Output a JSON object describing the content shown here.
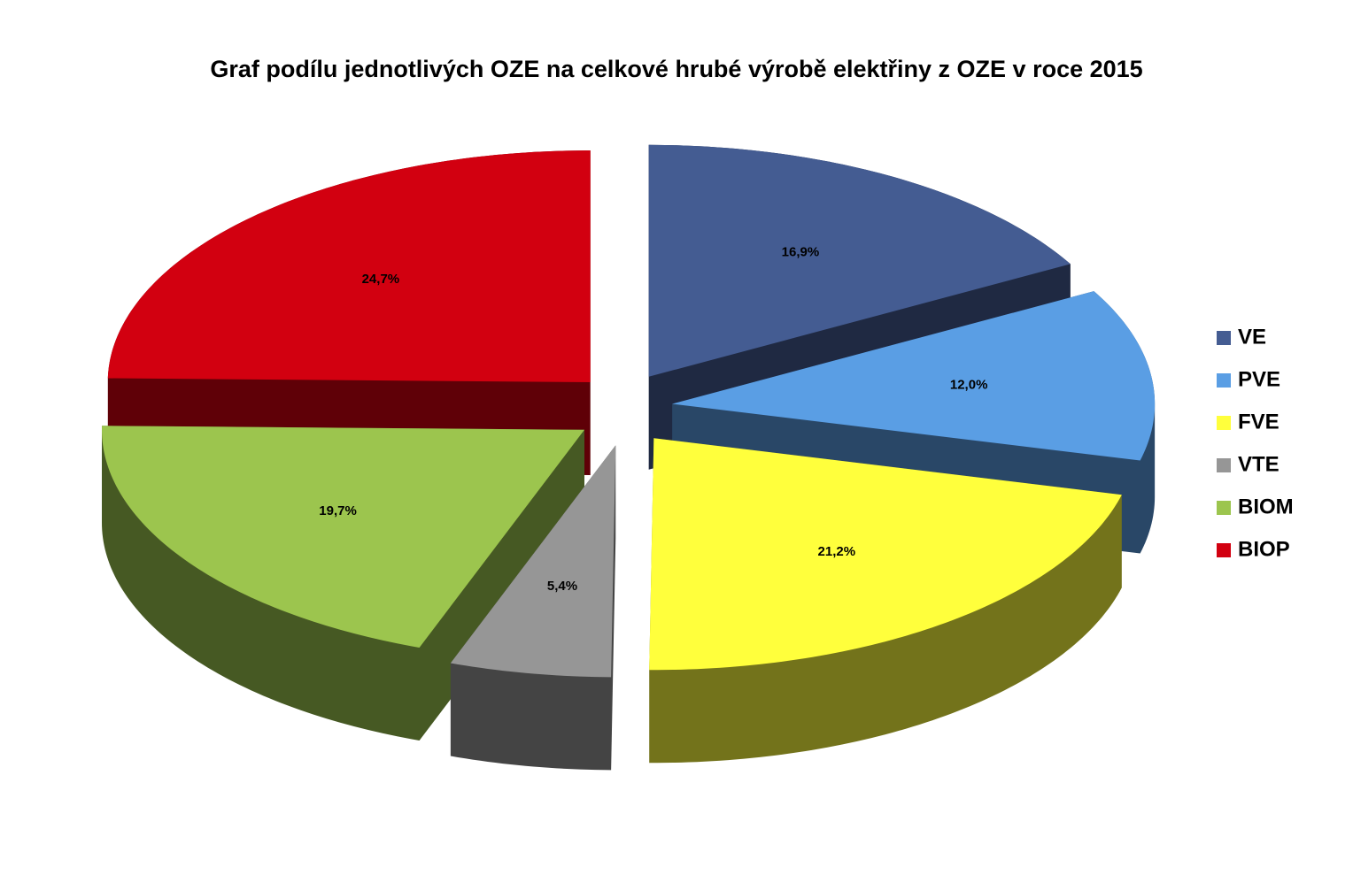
{
  "chart_data": {
    "type": "pie",
    "title": "Graf podílu jednotlivých OZE na celkové hrubé výrobě elektřiny z OZE v roce 2015",
    "categories": [
      "VE",
      "PVE",
      "FVE",
      "VTE",
      "BIOM",
      "BIOP"
    ],
    "values": [
      16.9,
      12.0,
      21.2,
      5.4,
      19.7,
      24.7
    ],
    "value_labels": [
      "16,9%",
      "12,0%",
      "21,2%",
      "5,4%",
      "19,7%",
      "24,7%"
    ],
    "colors": [
      "#445c92",
      "#5a9ee4",
      "#ffff3c",
      "#969696",
      "#9cc54e",
      "#d20010"
    ],
    "legend": "right"
  }
}
